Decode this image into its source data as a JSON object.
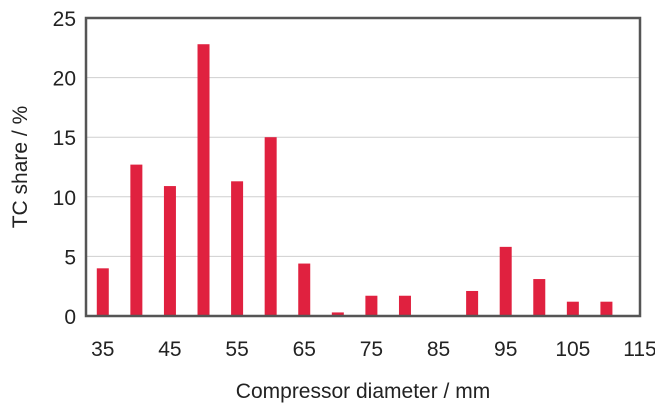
{
  "chart_data": {
    "type": "bar",
    "xlabel": "Compressor diameter / mm",
    "ylabel": "TC share / %",
    "x": [
      35,
      40,
      45,
      50,
      55,
      60,
      65,
      70,
      75,
      80,
      85,
      90,
      95,
      100,
      105,
      110
    ],
    "values": [
      4.0,
      12.7,
      10.9,
      22.8,
      11.3,
      15.0,
      4.4,
      0.3,
      1.7,
      1.7,
      0.0,
      2.1,
      5.8,
      3.1,
      1.2,
      1.2
    ],
    "xticks": [
      "35",
      "45",
      "55",
      "65",
      "75",
      "85",
      "95",
      "105",
      "115"
    ],
    "yticks": [
      "0",
      "5",
      "10",
      "15",
      "20",
      "25"
    ],
    "xlim": [
      32.5,
      115
    ],
    "ylim": [
      0,
      25
    ],
    "grid": true,
    "colors": {
      "bar": "#e0213f",
      "axis": "#555555",
      "grid": "#cfcfcf"
    }
  }
}
